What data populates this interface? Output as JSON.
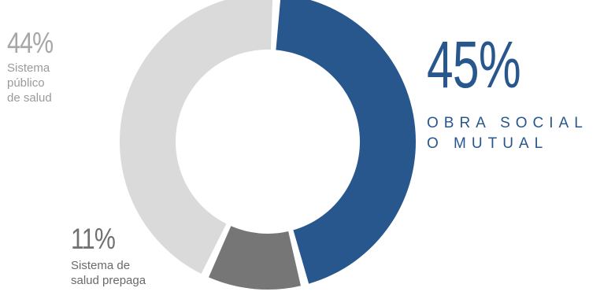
{
  "chart_data": {
    "type": "pie",
    "title": "",
    "slices": [
      {
        "label": "Obra social o mutual",
        "value": 45,
        "color": "#27578c"
      },
      {
        "label": "Sistema de salud prepaga",
        "value": 11,
        "color": "#767676"
      },
      {
        "label": "Sistema público de salud",
        "value": 44,
        "color": "#dadada"
      }
    ],
    "donut": true
  },
  "labels": {
    "obra": {
      "pct": "45%",
      "line1": "OBRA SOCIAL",
      "line2": "O MUTUAL"
    },
    "prepaga": {
      "pct": "11%",
      "line1": "Sistema de",
      "line2": "salud prepaga"
    },
    "publico": {
      "pct": "44%",
      "line1": "Sistema",
      "line2": "público",
      "line3": "de salud"
    }
  }
}
